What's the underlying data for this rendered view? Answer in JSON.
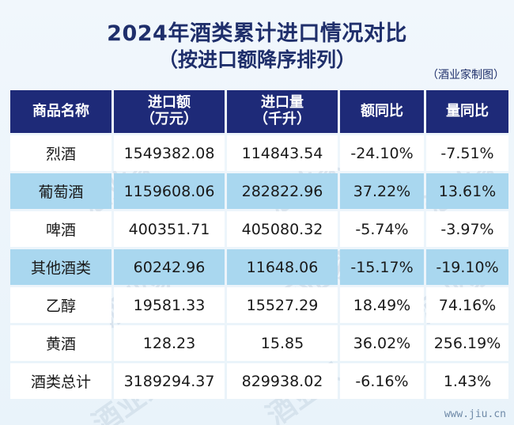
{
  "title": {
    "line1": "2024年酒类累计进口情况对比",
    "line2": "（按进口额降序排列）",
    "source": "（酒业家制图）"
  },
  "table": {
    "headers": [
      {
        "line1": "商品名称",
        "line2": ""
      },
      {
        "line1": "进口额",
        "line2": "（万元）"
      },
      {
        "line1": "进口量",
        "line2": "（千升）"
      },
      {
        "line1": "额同比",
        "line2": ""
      },
      {
        "line1": "量同比",
        "line2": ""
      }
    ],
    "rows": [
      {
        "name": "烈酒",
        "amount": "1549382.08",
        "volume": "114843.54",
        "amount_yoy": "-24.10%",
        "volume_yoy": "-7.51%"
      },
      {
        "name": "葡萄酒",
        "amount": "1159608.06",
        "volume": "282822.96",
        "amount_yoy": "37.22%",
        "volume_yoy": "13.61%"
      },
      {
        "name": "啤酒",
        "amount": "400351.71",
        "volume": "405080.32",
        "amount_yoy": "-5.74%",
        "volume_yoy": "-3.97%"
      },
      {
        "name": "其他酒类",
        "amount": "60242.96",
        "volume": "11648.06",
        "amount_yoy": "-15.17%",
        "volume_yoy": "-19.10%"
      },
      {
        "name": "乙醇",
        "amount": "19581.33",
        "volume": "15527.29",
        "amount_yoy": "18.49%",
        "volume_yoy": "74.16%"
      },
      {
        "name": "黄酒",
        "amount": "128.23",
        "volume": "15.85",
        "amount_yoy": "36.02%",
        "volume_yoy": "256.19%"
      },
      {
        "name": "酒类总计",
        "amount": "3189294.37",
        "volume": "829938.02",
        "amount_yoy": "-6.16%",
        "volume_yoy": "1.43%"
      }
    ]
  },
  "watermark": "酒业家",
  "site_url": "www.jiu.cn",
  "colors": {
    "header_bg": "#1e2a78",
    "title_color": "#1f2f6b",
    "stripe_light": "#ffffff",
    "stripe_blue": "#a9d7ef"
  }
}
